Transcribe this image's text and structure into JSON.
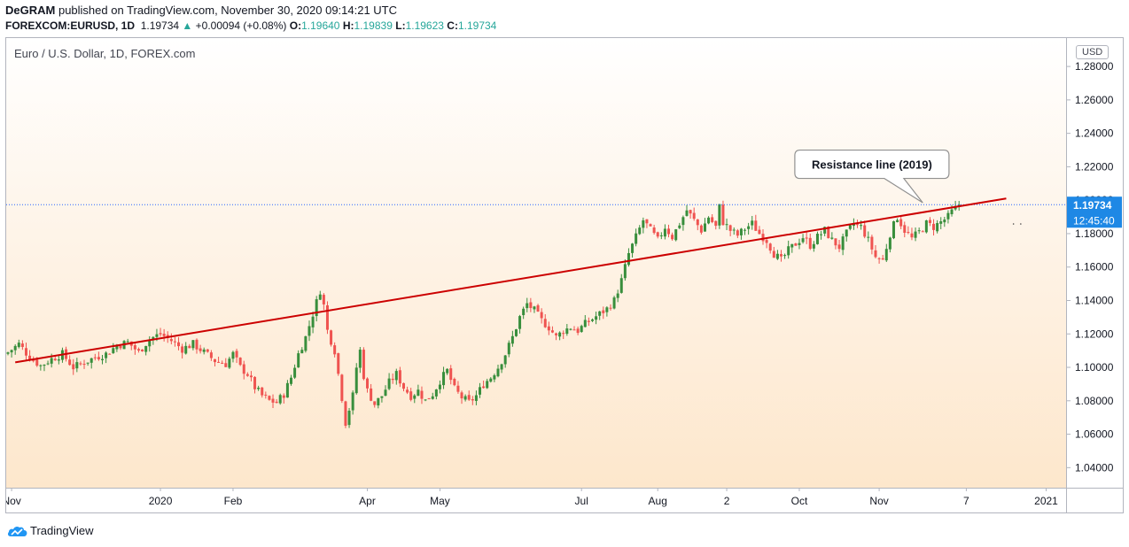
{
  "header": {
    "author": "DeGRAM",
    "published": "published on TradingView.com, November 30, 2020 09:14:21 UTC",
    "symbol": "FOREXCOM:EURUSD, 1D",
    "last": "1.19734",
    "change": "+0.00094 (+0.08%)",
    "o_label": "O:",
    "o_value": "1.19640",
    "h_label": "H:",
    "h_value": "1.19839",
    "l_label": "L:",
    "l_value": "1.19623",
    "c_label": "C:",
    "c_value": "1.19734"
  },
  "footer": {
    "brand": "TradingView"
  },
  "colors": {
    "up": "#26a69a",
    "candle_up": "#388e3c",
    "candle_down": "#ef5350",
    "trend": "#cc0000",
    "price_tag": "#1e88e5"
  },
  "chart_data": {
    "type": "candlestick",
    "title": "Euro / U.S. Dollar, 1D, FOREX.com",
    "currency": "USD",
    "ylim": [
      1.028,
      1.297
    ],
    "yticks": [
      "1.28000",
      "1.26000",
      "1.24000",
      "1.22000",
      "1.20000",
      "1.18000",
      "1.16000",
      "1.14000",
      "1.12000",
      "1.10000",
      "1.08000",
      "1.06000",
      "1.04000"
    ],
    "xlim": [
      0,
      291
    ],
    "xticks": [
      {
        "label": "Nov",
        "x": 1
      },
      {
        "label": "2020",
        "x": 42
      },
      {
        "label": "Feb",
        "x": 62
      },
      {
        "label": "Apr",
        "x": 99
      },
      {
        "label": "May",
        "x": 119
      },
      {
        "label": "Jul",
        "x": 158
      },
      {
        "label": "Aug",
        "x": 179
      },
      {
        "label": "2",
        "x": 198
      },
      {
        "label": "Oct",
        "x": 218
      },
      {
        "label": "Nov",
        "x": 240
      },
      {
        "label": "7",
        "x": 264
      },
      {
        "label": "2021",
        "x": 286
      }
    ],
    "close_path": [
      [
        0,
        1.109
      ],
      [
        3,
        1.114
      ],
      [
        6,
        1.106
      ],
      [
        9,
        1.101
      ],
      [
        12,
        1.105
      ],
      [
        15,
        1.108
      ],
      [
        18,
        1.1
      ],
      [
        21,
        1.103
      ],
      [
        24,
        1.106
      ],
      [
        27,
        1.108
      ],
      [
        30,
        1.113
      ],
      [
        33,
        1.115
      ],
      [
        36,
        1.109
      ],
      [
        39,
        1.117
      ],
      [
        42,
        1.12
      ],
      [
        45,
        1.116
      ],
      [
        48,
        1.111
      ],
      [
        51,
        1.114
      ],
      [
        54,
        1.109
      ],
      [
        57,
        1.104
      ],
      [
        60,
        1.102
      ],
      [
        62,
        1.108
      ],
      [
        64,
        1.1
      ],
      [
        66,
        1.096
      ],
      [
        68,
        1.088
      ],
      [
        70,
        1.083
      ],
      [
        72,
        1.08
      ],
      [
        74,
        1.079
      ],
      [
        76,
        1.084
      ],
      [
        78,
        1.094
      ],
      [
        80,
        1.108
      ],
      [
        82,
        1.118
      ],
      [
        84,
        1.132
      ],
      [
        86,
        1.146
      ],
      [
        87,
        1.137
      ],
      [
        88,
        1.122
      ],
      [
        89,
        1.116
      ],
      [
        90,
        1.11
      ],
      [
        91,
        1.096
      ],
      [
        92,
        1.082
      ],
      [
        93,
        1.067
      ],
      [
        95,
        1.083
      ],
      [
        96,
        1.1
      ],
      [
        97,
        1.11
      ],
      [
        98,
        1.095
      ],
      [
        99,
        1.086
      ],
      [
        101,
        1.078
      ],
      [
        103,
        1.083
      ],
      [
        105,
        1.091
      ],
      [
        107,
        1.096
      ],
      [
        109,
        1.088
      ],
      [
        111,
        1.083
      ],
      [
        113,
        1.086
      ],
      [
        115,
        1.08
      ],
      [
        117,
        1.084
      ],
      [
        119,
        1.092
      ],
      [
        121,
        1.098
      ],
      [
        123,
        1.087
      ],
      [
        125,
        1.082
      ],
      [
        127,
        1.079
      ],
      [
        129,
        1.083
      ],
      [
        131,
        1.09
      ],
      [
        133,
        1.094
      ],
      [
        135,
        1.1
      ],
      [
        137,
        1.108
      ],
      [
        139,
        1.118
      ],
      [
        141,
        1.13
      ],
      [
        143,
        1.138
      ],
      [
        145,
        1.134
      ],
      [
        147,
        1.128
      ],
      [
        149,
        1.124
      ],
      [
        151,
        1.118
      ],
      [
        153,
        1.122
      ],
      [
        155,
        1.124
      ],
      [
        157,
        1.122
      ],
      [
        159,
        1.126
      ],
      [
        161,
        1.129
      ],
      [
        163,
        1.132
      ],
      [
        165,
        1.135
      ],
      [
        167,
        1.14
      ],
      [
        169,
        1.152
      ],
      [
        171,
        1.168
      ],
      [
        173,
        1.178
      ],
      [
        175,
        1.188
      ],
      [
        177,
        1.182
      ],
      [
        179,
        1.176
      ],
      [
        181,
        1.184
      ],
      [
        183,
        1.178
      ],
      [
        185,
        1.186
      ],
      [
        187,
        1.194
      ],
      [
        189,
        1.188
      ],
      [
        191,
        1.182
      ],
      [
        193,
        1.19
      ],
      [
        195,
        1.184
      ],
      [
        196,
        1.196
      ],
      [
        197,
        1.187
      ],
      [
        199,
        1.182
      ],
      [
        201,
        1.179
      ],
      [
        203,
        1.183
      ],
      [
        205,
        1.186
      ],
      [
        207,
        1.18
      ],
      [
        209,
        1.176
      ],
      [
        211,
        1.168
      ],
      [
        213,
        1.164
      ],
      [
        215,
        1.17
      ],
      [
        217,
        1.174
      ],
      [
        219,
        1.178
      ],
      [
        221,
        1.173
      ],
      [
        223,
        1.178
      ],
      [
        225,
        1.182
      ],
      [
        227,
        1.176
      ],
      [
        229,
        1.172
      ],
      [
        231,
        1.18
      ],
      [
        233,
        1.186
      ],
      [
        235,
        1.184
      ],
      [
        237,
        1.176
      ],
      [
        239,
        1.166
      ],
      [
        241,
        1.164
      ],
      [
        243,
        1.18
      ],
      [
        245,
        1.19
      ],
      [
        247,
        1.182
      ],
      [
        249,
        1.177
      ],
      [
        251,
        1.181
      ],
      [
        253,
        1.186
      ],
      [
        255,
        1.184
      ],
      [
        257,
        1.187
      ],
      [
        259,
        1.19
      ],
      [
        260,
        1.193
      ],
      [
        261,
        1.195
      ],
      [
        262,
        1.19734
      ]
    ],
    "annotations": [
      {
        "type": "trendline",
        "from": [
          2,
          1.103
        ],
        "to": [
          275,
          1.201
        ]
      },
      {
        "type": "callout",
        "text": "Resistance line (2019)",
        "x": 238,
        "y": 1.2215,
        "pointer": [
          252,
          1.1985
        ]
      },
      {
        "type": "price_label",
        "text": "1.19734",
        "y": 1.19734
      },
      {
        "type": "countdown_label",
        "text": "12:45:40",
        "y": 1.1883
      }
    ]
  }
}
